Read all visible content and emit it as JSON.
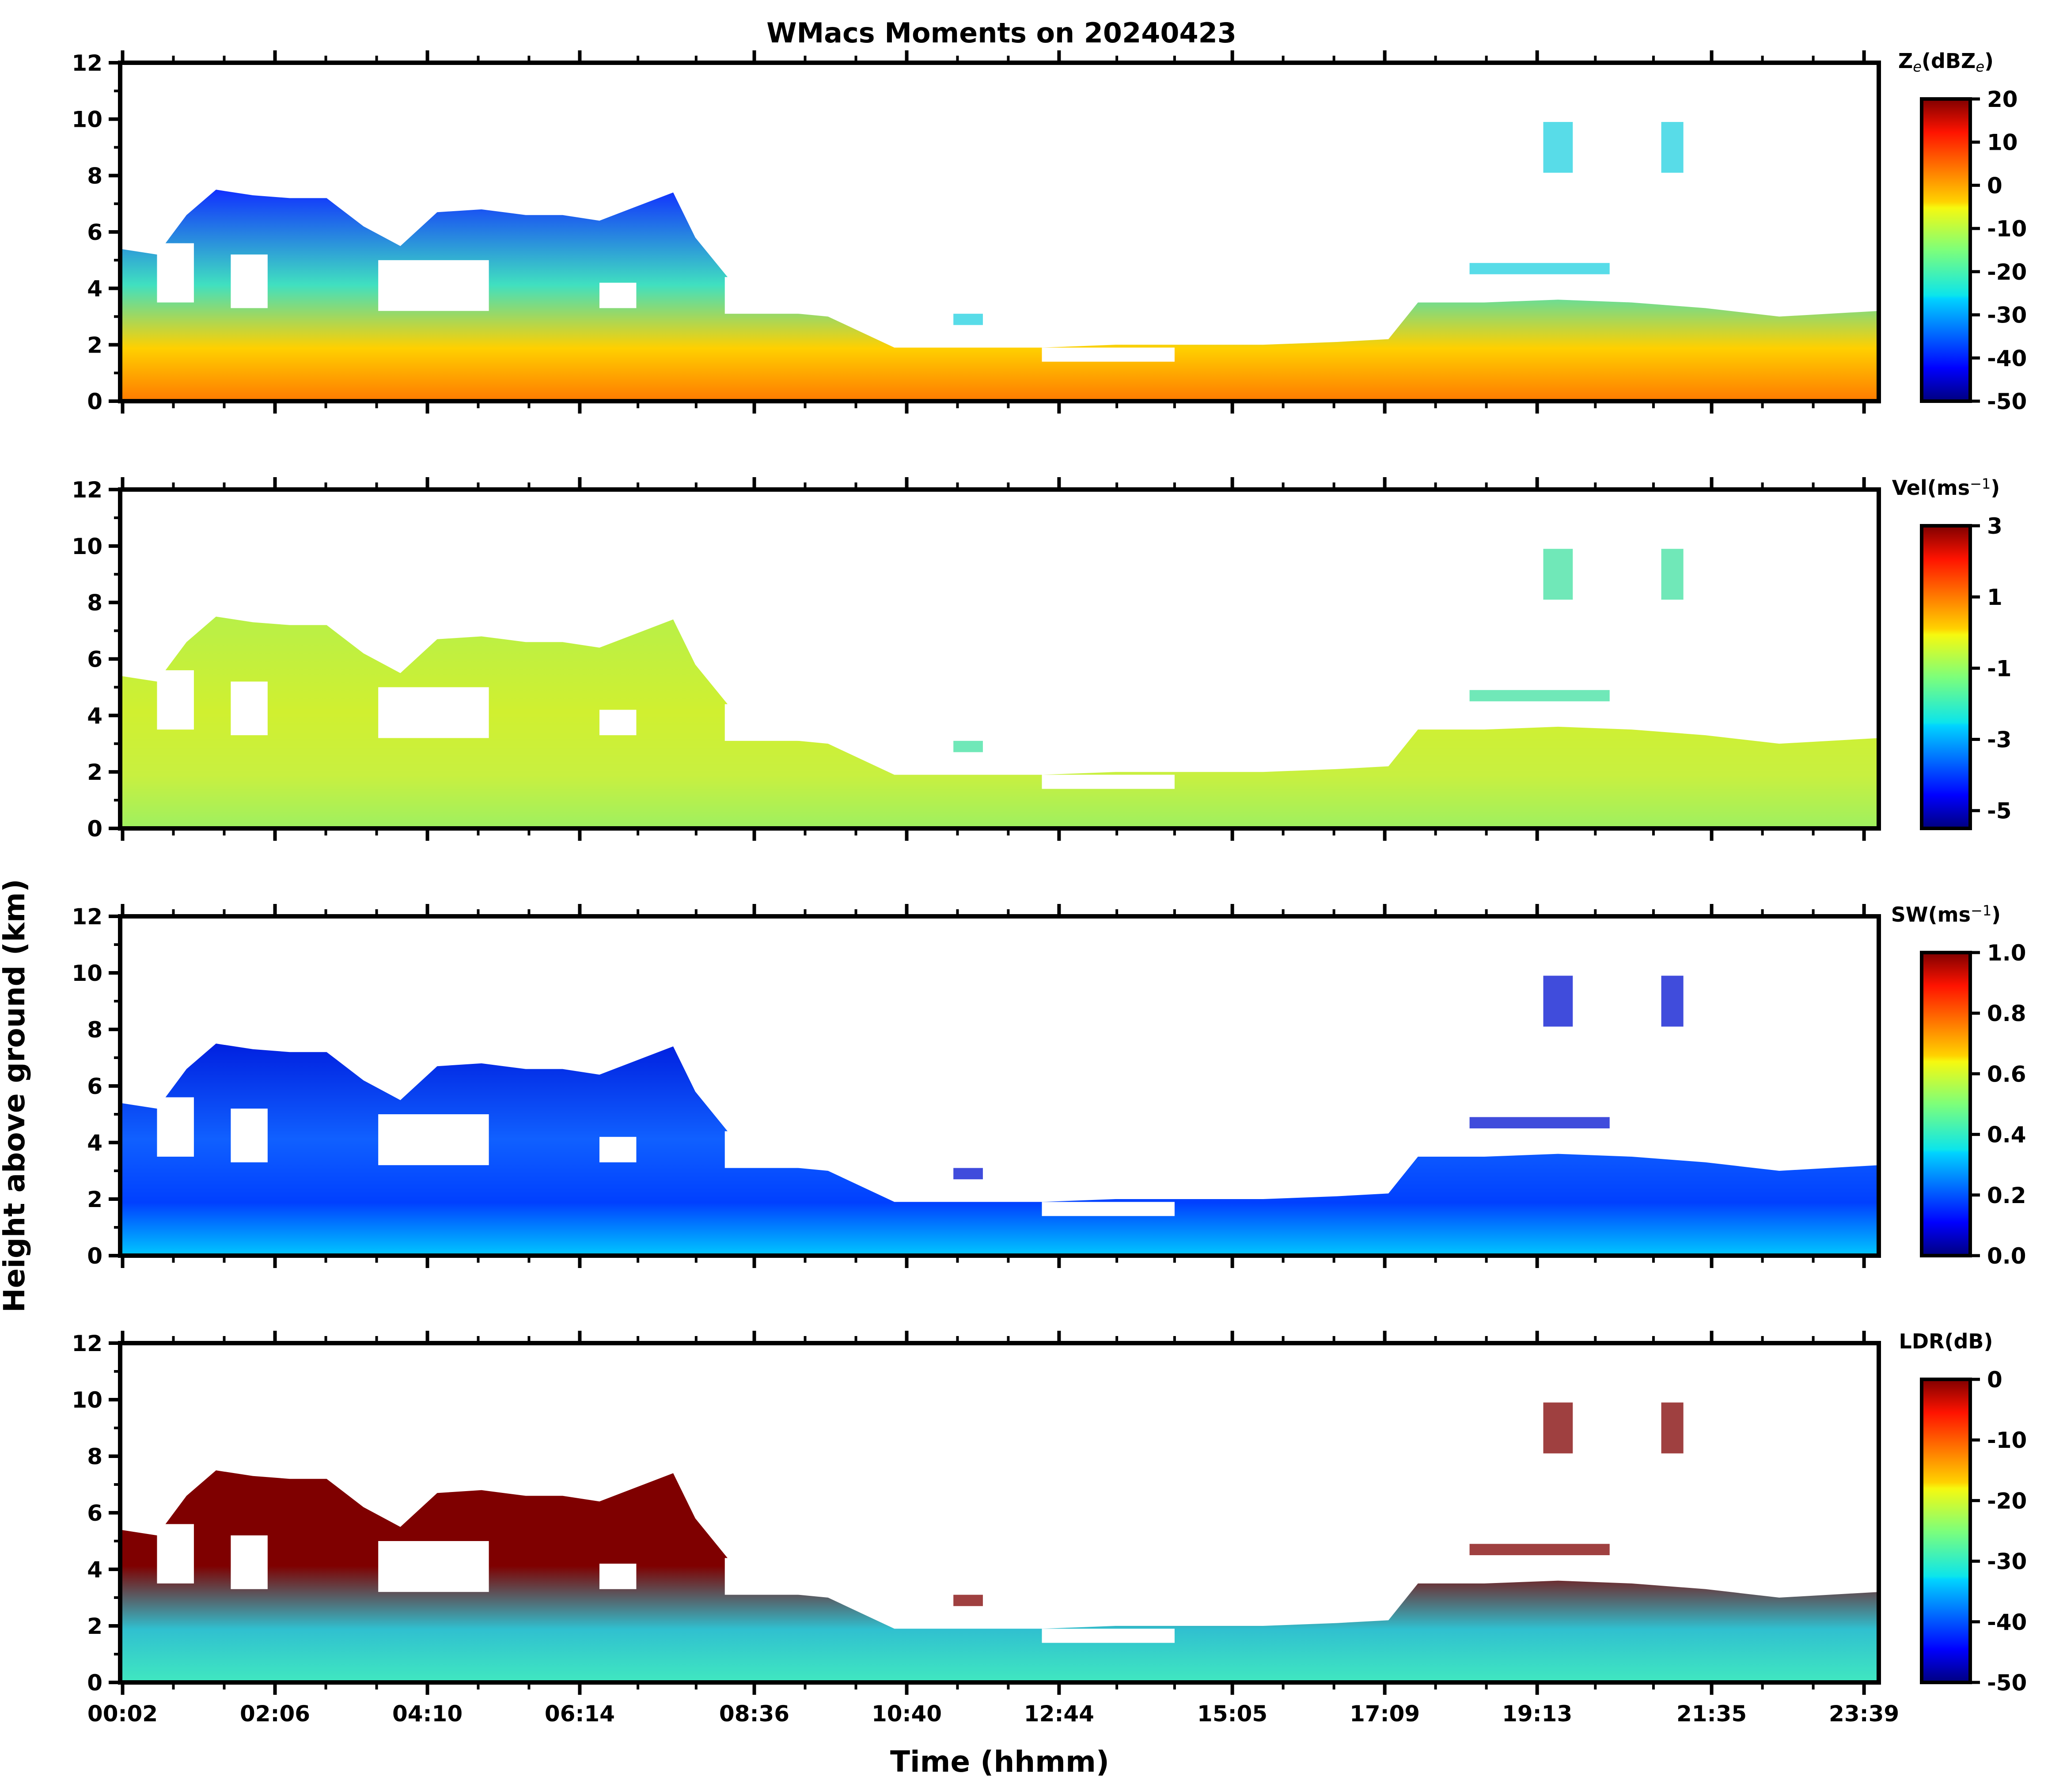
{
  "chart_data": {
    "type": "heatmap",
    "title": "WMacs Moments on 20240423",
    "xlabel": "Time (hhmm)",
    "ylabel": "Height above ground (km)",
    "x_ticks": [
      "00:02",
      "02:06",
      "04:10",
      "06:14",
      "08:36",
      "10:40",
      "12:44",
      "15:05",
      "17:09",
      "19:13",
      "21:35",
      "23:39"
    ],
    "x_tick_hours": [
      0.033,
      2.1,
      4.167,
      6.233,
      8.6,
      10.667,
      12.733,
      15.083,
      17.15,
      19.217,
      21.583,
      23.65
    ],
    "x_range_hours": [
      0.0,
      23.85
    ],
    "y_ticks": [
      "0",
      "2",
      "4",
      "6",
      "8",
      "10",
      "12"
    ],
    "ylim": [
      0,
      12
    ],
    "panels": [
      {
        "name": "reflectivity",
        "colorbar_label_base": "Z",
        "colorbar_label_sub": "e",
        "colorbar_label_mid": "(dBZ",
        "colorbar_label_sub2": "e",
        "colorbar_label_end": ")",
        "colorbar_ticks": [
          "20",
          "10",
          "0",
          "-10",
          "-20",
          "-30",
          "-40",
          "-50"
        ],
        "colorbar_range": [
          -50,
          20
        ]
      },
      {
        "name": "velocity",
        "colorbar_label_base": "Vel(ms",
        "colorbar_label_sup": "−1",
        "colorbar_label_end": ")",
        "colorbar_ticks": [
          "3",
          "1",
          "-1",
          "-3",
          "-5"
        ],
        "colorbar_range": [
          -5.5,
          3
        ]
      },
      {
        "name": "spectral-width",
        "colorbar_label_base": "SW(ms",
        "colorbar_label_sup": "−1",
        "colorbar_label_end": ")",
        "colorbar_ticks": [
          "1.0",
          "0.8",
          "0.6",
          "0.4",
          "0.2",
          "0.0"
        ],
        "colorbar_range": [
          0,
          1
        ]
      },
      {
        "name": "ldr",
        "colorbar_label_base": "LDR(dB)",
        "colorbar_ticks": [
          "0",
          "-10",
          "-20",
          "-30",
          "-40",
          "-50"
        ],
        "colorbar_range": [
          -50,
          0
        ]
      }
    ],
    "cloud_top_km": [
      [
        0.0,
        5.4
      ],
      [
        0.5,
        5.2
      ],
      [
        0.9,
        6.6
      ],
      [
        1.3,
        7.5
      ],
      [
        1.8,
        7.3
      ],
      [
        2.3,
        7.2
      ],
      [
        2.8,
        7.2
      ],
      [
        3.3,
        6.2
      ],
      [
        3.8,
        5.5
      ],
      [
        4.3,
        6.7
      ],
      [
        4.9,
        6.8
      ],
      [
        5.5,
        6.6
      ],
      [
        6.0,
        6.6
      ],
      [
        6.5,
        6.4
      ],
      [
        7.0,
        6.9
      ],
      [
        7.5,
        7.4
      ],
      [
        7.8,
        5.8
      ],
      [
        8.3,
        4.2
      ],
      [
        8.8,
        3.2
      ],
      [
        9.6,
        3.0
      ],
      [
        10.5,
        1.9
      ],
      [
        11.5,
        1.9
      ],
      [
        12.5,
        1.9
      ],
      [
        13.5,
        2.0
      ],
      [
        14.5,
        2.0
      ],
      [
        15.5,
        2.0
      ],
      [
        16.5,
        2.1
      ],
      [
        17.2,
        2.2
      ],
      [
        17.6,
        3.5
      ],
      [
        18.5,
        3.5
      ],
      [
        19.5,
        3.6
      ],
      [
        20.5,
        3.5
      ],
      [
        21.5,
        3.3
      ],
      [
        22.5,
        3.0
      ],
      [
        23.85,
        3.2
      ]
    ],
    "cloud_base_km": [
      [
        0.0,
        0.0
      ],
      [
        23.85,
        0.0
      ]
    ],
    "gaps_km": [
      {
        "x0": 0.5,
        "x1": 1.0,
        "y0": 3.5,
        "y1": 5.6
      },
      {
        "x0": 1.5,
        "x1": 2.0,
        "y0": 3.3,
        "y1": 5.2
      },
      {
        "x0": 3.5,
        "x1": 5.0,
        "y0": 3.2,
        "y1": 5.0
      },
      {
        "x0": 6.5,
        "x1": 7.0,
        "y0": 3.3,
        "y1": 4.2
      },
      {
        "x0": 8.2,
        "x1": 9.3,
        "y0": 3.1,
        "y1": 4.4
      },
      {
        "x0": 12.5,
        "x1": 14.3,
        "y0": 1.4,
        "y1": 1.9
      }
    ],
    "upper_cloud_fragments_km": [
      {
        "x0": 19.3,
        "x1": 19.7,
        "y0": 8.1,
        "y1": 9.9
      },
      {
        "x0": 20.9,
        "x1": 21.2,
        "y0": 8.1,
        "y1": 9.9
      },
      {
        "x0": 18.3,
        "x1": 20.2,
        "y0": 4.5,
        "y1": 4.9
      },
      {
        "x0": 11.3,
        "x1": 11.7,
        "y0": 2.7,
        "y1": 3.1
      }
    ]
  }
}
